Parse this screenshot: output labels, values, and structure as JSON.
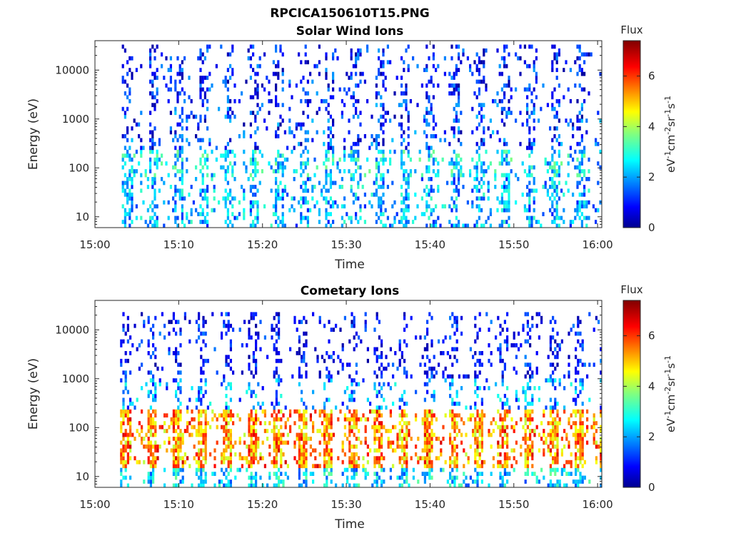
{
  "figure": {
    "main_title": "RPCICA150610T15.PNG"
  },
  "chart_data": [
    {
      "type": "heatmap",
      "title": "Solar Wind Ions",
      "xlabel": "Time",
      "ylabel": "Energy (eV)",
      "xticks": [
        "15:00",
        "15:10",
        "15:20",
        "15:30",
        "15:40",
        "15:50",
        "16:00"
      ],
      "xlim_minutes": [
        0,
        60.5
      ],
      "yscale": "log",
      "yticks": [
        "10",
        "100",
        "1000",
        "10000"
      ],
      "ylim": [
        6,
        40000
      ],
      "colorbar": {
        "title": "Flux",
        "label_parts": [
          "eV",
          "-1",
          "cm",
          "-2",
          "sr",
          "-1",
          "s",
          "-1"
        ],
        "ticks": [
          "0",
          "2",
          "4",
          "6"
        ],
        "range": [
          0,
          7.4
        ],
        "colormap": "jet"
      },
      "data_start_minute": 3.2,
      "sweep_period_minutes": 3.0,
      "sweep_count": 19,
      "energy_bands_eV": [
        {
          "energy_range": [
            2000,
            30000
          ],
          "typical_flux": 1.0
        },
        {
          "energy_range": [
            200,
            2000
          ],
          "typical_flux": 1.3
        },
        {
          "energy_range": [
            60,
            200
          ],
          "typical_flux": 2.6
        },
        {
          "energy_range": [
            6,
            60
          ],
          "typical_flux": 2.2
        }
      ],
      "peak_flux": 4.0
    },
    {
      "type": "heatmap",
      "title": "Cometary Ions",
      "xlabel": "Time",
      "ylabel": "Energy (eV)",
      "xticks": [
        "15:00",
        "15:10",
        "15:20",
        "15:30",
        "15:40",
        "15:50",
        "16:00"
      ],
      "xlim_minutes": [
        0,
        60.5
      ],
      "yscale": "log",
      "yticks": [
        "10",
        "100",
        "1000",
        "10000"
      ],
      "ylim": [
        6,
        40000
      ],
      "colorbar": {
        "title": "Flux",
        "label_parts": [
          "eV",
          "-1",
          "cm",
          "-2",
          "sr",
          "-1",
          "s",
          "-1"
        ],
        "ticks": [
          "0",
          "2",
          "4",
          "6"
        ],
        "range": [
          0,
          7.4
        ],
        "colormap": "jet"
      },
      "data_start_minute": 3.0,
      "sweep_period_minutes": 3.0,
      "sweep_count": 19,
      "energy_bands_eV": [
        {
          "energy_range": [
            1000,
            20000
          ],
          "typical_flux": 0.8
        },
        {
          "energy_range": [
            200,
            1000
          ],
          "typical_flux": 2.0
        },
        {
          "energy_range": [
            15,
            200
          ],
          "typical_flux": 5.2
        },
        {
          "energy_range": [
            6,
            15
          ],
          "typical_flux": 2.5
        }
      ],
      "peak_flux": 6.8
    }
  ]
}
